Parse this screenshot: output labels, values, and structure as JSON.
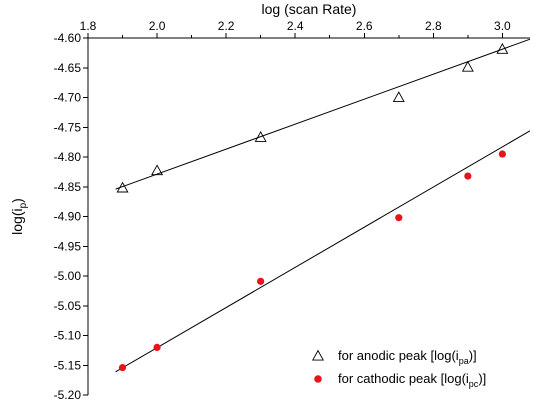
{
  "chart_data": {
    "type": "scatter",
    "title": "",
    "xlabel": "log (scan Rate)",
    "ylabel": "log(i<sub>p</sub>)",
    "ylabel_parts": {
      "base": "log(i",
      "sub": "p",
      "suffix": ")"
    },
    "x_axis_position": "top",
    "xlim": [
      1.8,
      3.08
    ],
    "ylim": [
      -5.2,
      -4.6
    ],
    "x_ticks": [
      1.8,
      2.0,
      2.2,
      2.4,
      2.6,
      2.8,
      3.0
    ],
    "x_tick_labels": [
      "1.8",
      "2.0",
      "2.2",
      "2.4",
      "2.6",
      "2.8",
      "3.0"
    ],
    "y_ticks": [
      -4.6,
      -4.65,
      -4.7,
      -4.75,
      -4.8,
      -4.85,
      -4.9,
      -4.95,
      -5.0,
      -5.05,
      -5.1,
      -5.15,
      -5.2
    ],
    "y_tick_labels": [
      "-4.60",
      "-4.65",
      "-4.70",
      "-4.75",
      "-4.80",
      "-4.85",
      "-4.90",
      "-4.95",
      "-5.00",
      "-5.05",
      "-5.10",
      "-5.15",
      "-5.20"
    ],
    "grid": false,
    "legend_position": "bottom-right",
    "series": [
      {
        "name": "for anodic peak [log(ipa)]",
        "legend_parts": {
          "base": "for anodic peak [log(i",
          "sub": "pa",
          "suffix": ")]"
        },
        "marker": "open-triangle",
        "color": "#000000",
        "x": [
          1.9,
          2.0,
          2.3,
          2.7,
          2.9,
          3.0
        ],
        "y": [
          -4.852,
          -4.823,
          -4.767,
          -4.7,
          -4.649,
          -4.619
        ],
        "fit": {
          "x": [
            1.88,
            3.08
          ],
          "y": [
            -4.854,
            -4.602
          ]
        }
      },
      {
        "name": "for cathodic peak [log(ipc)]",
        "legend_parts": {
          "base": "for cathodic peak [log(i",
          "sub": "pc",
          "suffix": ")]"
        },
        "marker": "filled-circle",
        "color": "#e8141b",
        "x": [
          1.9,
          2.0,
          2.3,
          2.7,
          2.9,
          3.0
        ],
        "y": [
          -5.154,
          -5.12,
          -5.009,
          -4.902,
          -4.832,
          -4.795
        ],
        "fit": {
          "x": [
            1.88,
            3.08
          ],
          "y": [
            -5.161,
            -4.756
          ]
        }
      }
    ]
  }
}
